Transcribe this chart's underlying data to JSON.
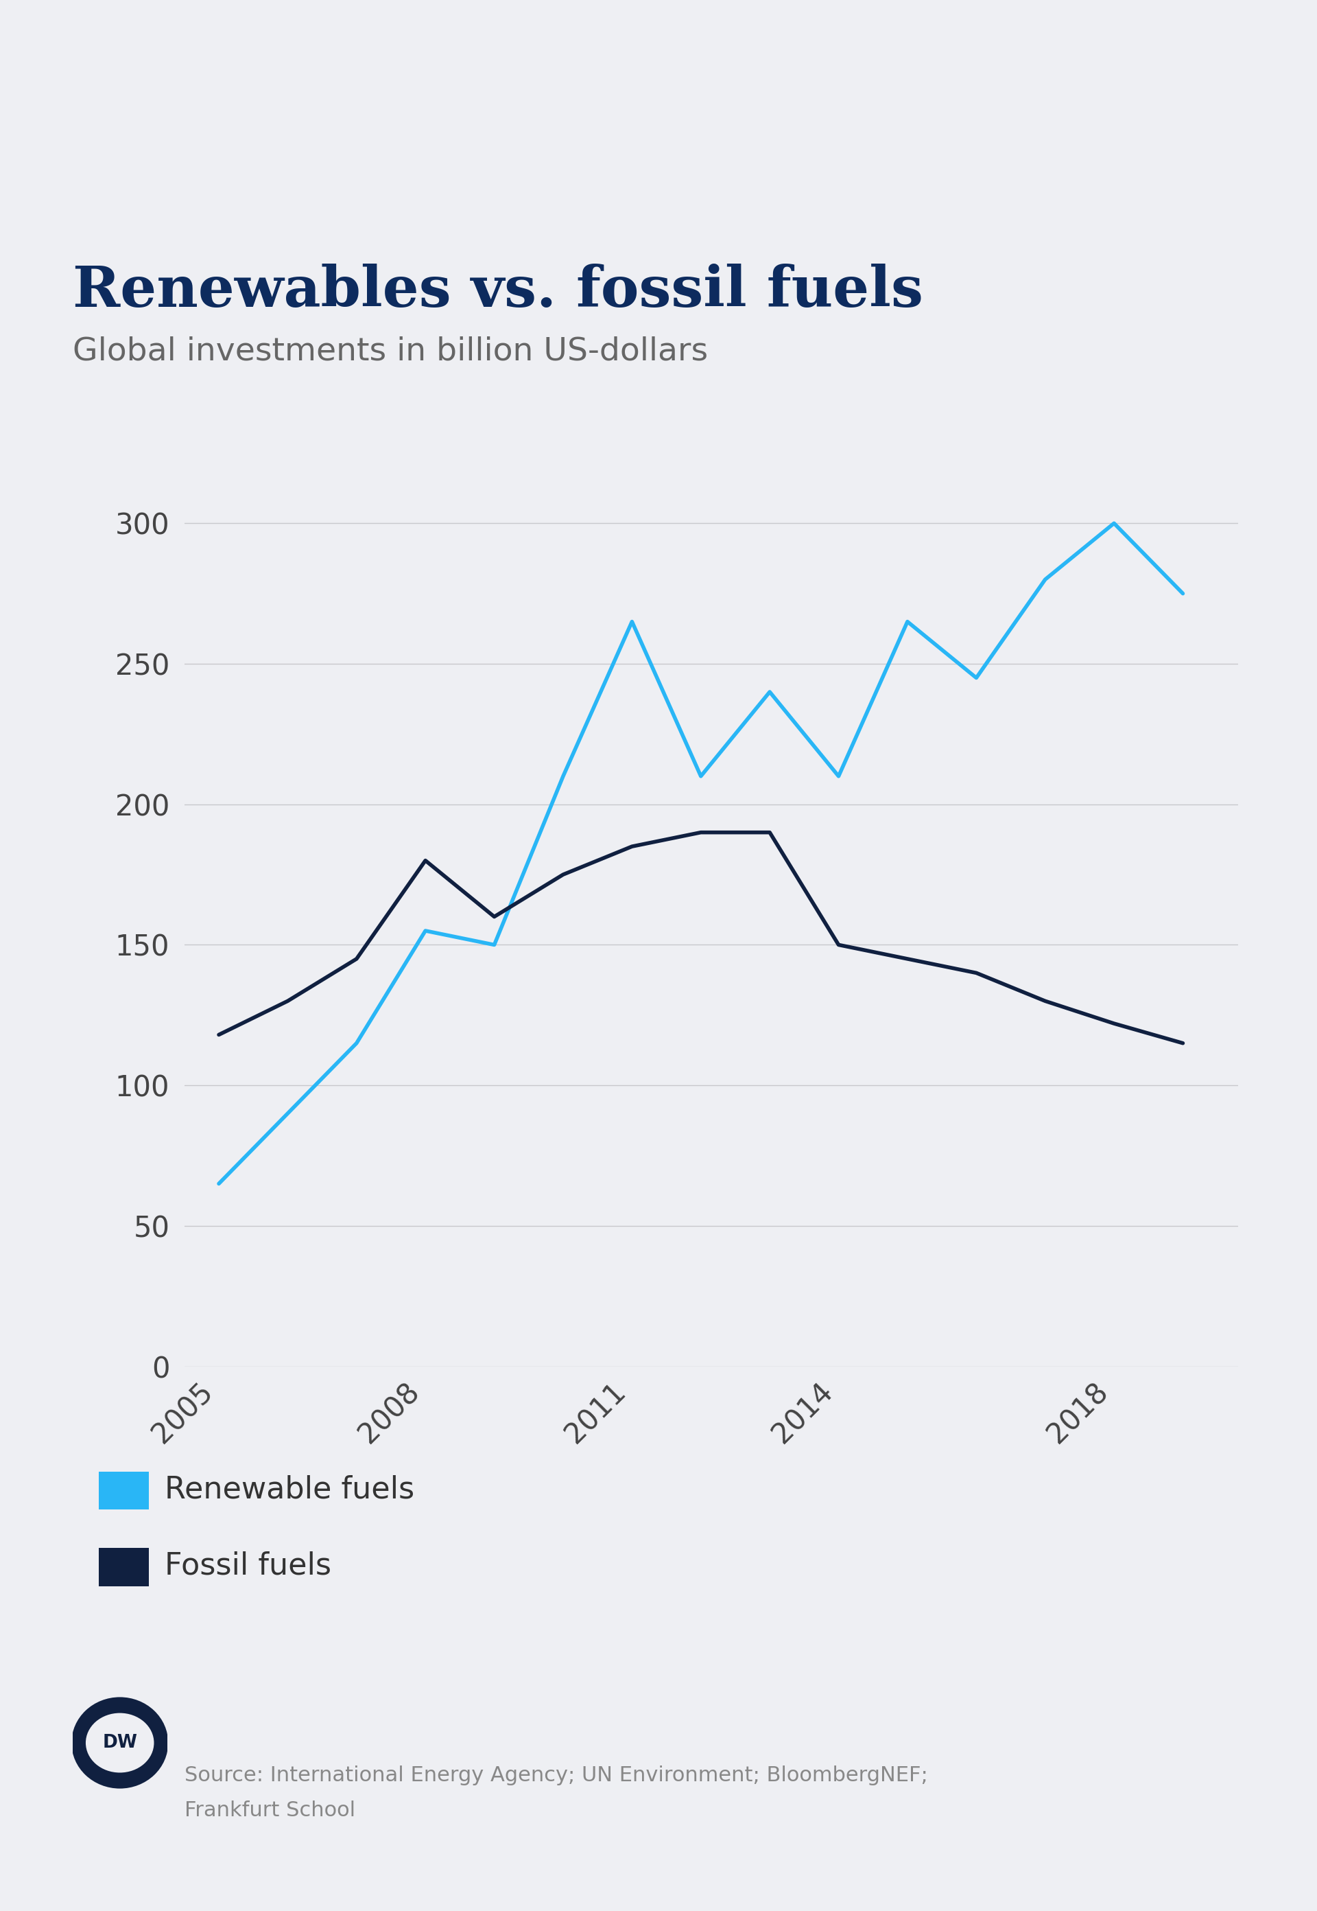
{
  "title": "Renewables vs. fossil fuels",
  "subtitle": "Global investments in billion US-dollars",
  "background_color": "#eeeff3",
  "title_color": "#0d2b5e",
  "subtitle_color": "#666666",
  "years": [
    2005,
    2006,
    2007,
    2008,
    2009,
    2010,
    2011,
    2012,
    2013,
    2014,
    2015,
    2016,
    2017,
    2018,
    2019
  ],
  "renewables": [
    65,
    90,
    115,
    155,
    150,
    210,
    265,
    210,
    240,
    210,
    265,
    245,
    280,
    300,
    275
  ],
  "fossil_fuels": [
    118,
    130,
    145,
    180,
    160,
    175,
    185,
    190,
    190,
    150,
    145,
    140,
    130,
    122,
    115
  ],
  "renewables_color": "#29b6f6",
  "fossil_color": "#102040",
  "line_width": 4.0,
  "yticks": [
    0,
    50,
    100,
    150,
    200,
    250,
    300
  ],
  "xticks": [
    2005,
    2008,
    2011,
    2014,
    2018
  ],
  "ylim": [
    0,
    340
  ],
  "xlim": [
    2004.5,
    2019.8
  ],
  "source_text1": "Source: International Energy Agency; UN Environment; BloombergNEF;",
  "source_text2": "Frankfurt School",
  "legend_renewable_label": "Renewable fuels",
  "legend_fossil_label": "Fossil fuels",
  "grid_color": "#c8c8cc",
  "tick_color": "#444444"
}
